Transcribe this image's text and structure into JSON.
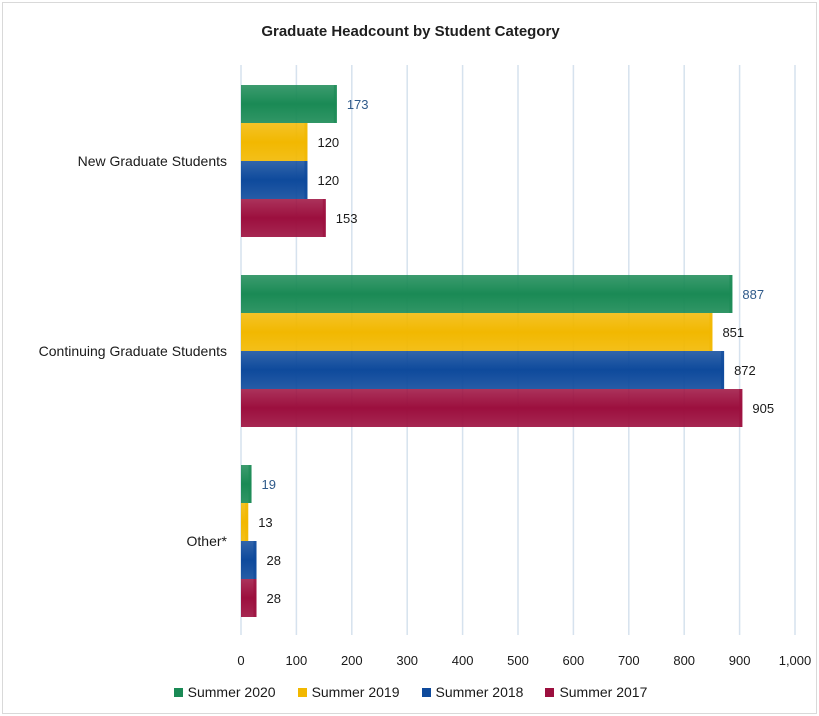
{
  "chart_data": {
    "type": "bar",
    "orientation": "horizontal",
    "title": "Graduate Headcount by Student Category",
    "categories": [
      "New Graduate Students",
      "Continuing Graduate Students",
      "Other*"
    ],
    "series": [
      {
        "name": "Summer 2020",
        "color": "#1a8a55",
        "label_color": "#2f5a8a",
        "values": [
          173,
          887,
          19
        ]
      },
      {
        "name": "Summer 2019",
        "color": "#f2b800",
        "label_color": "#1a1a1a",
        "values": [
          120,
          851,
          13
        ]
      },
      {
        "name": "Summer 2018",
        "color": "#0e4a9c",
        "label_color": "#1a1a1a",
        "values": [
          120,
          872,
          28
        ]
      },
      {
        "name": "Summer 2017",
        "color": "#9c0f3e",
        "label_color": "#1a1a1a",
        "values": [
          153,
          905,
          28
        ]
      }
    ],
    "xlim": [
      0,
      1000
    ],
    "xticks": [
      0,
      100,
      200,
      300,
      400,
      500,
      600,
      700,
      800,
      900,
      1000
    ],
    "xtick_labels": [
      "0",
      "100",
      "200",
      "300",
      "400",
      "500",
      "600",
      "700",
      "800",
      "900",
      "1,000"
    ],
    "grid": true,
    "legend_position": "bottom"
  }
}
